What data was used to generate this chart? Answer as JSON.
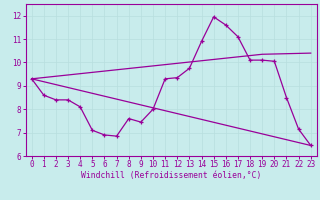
{
  "bg_color": "#c8ecec",
  "line_color": "#990099",
  "grid_color": "#b8dede",
  "xlabel": "Windchill (Refroidissement éolien,°C)",
  "xlabel_color": "#990099",
  "tick_color": "#990099",
  "ylim": [
    6,
    12.5
  ],
  "xlim": [
    -0.5,
    23.5
  ],
  "yticks": [
    6,
    7,
    8,
    9,
    10,
    11,
    12
  ],
  "xticks": [
    0,
    1,
    2,
    3,
    4,
    5,
    6,
    7,
    8,
    9,
    10,
    11,
    12,
    13,
    14,
    15,
    16,
    17,
    18,
    19,
    20,
    21,
    22,
    23
  ],
  "line1_x": [
    0,
    1,
    2,
    3,
    4,
    5,
    6,
    7,
    8,
    9,
    10,
    11,
    12,
    13,
    14,
    15,
    16,
    17,
    18,
    19,
    20,
    21,
    22,
    23
  ],
  "line1_y": [
    9.3,
    8.6,
    8.4,
    8.4,
    8.1,
    7.1,
    6.9,
    6.85,
    7.6,
    7.45,
    8.0,
    9.3,
    9.35,
    9.75,
    10.9,
    11.95,
    11.6,
    11.1,
    10.1,
    10.1,
    10.05,
    8.5,
    7.15,
    6.45
  ],
  "line2_x": [
    0,
    23
  ],
  "line2_y": [
    9.3,
    6.45
  ],
  "line3_x": [
    0,
    19,
    23
  ],
  "line3_y": [
    9.3,
    10.35,
    10.4
  ]
}
